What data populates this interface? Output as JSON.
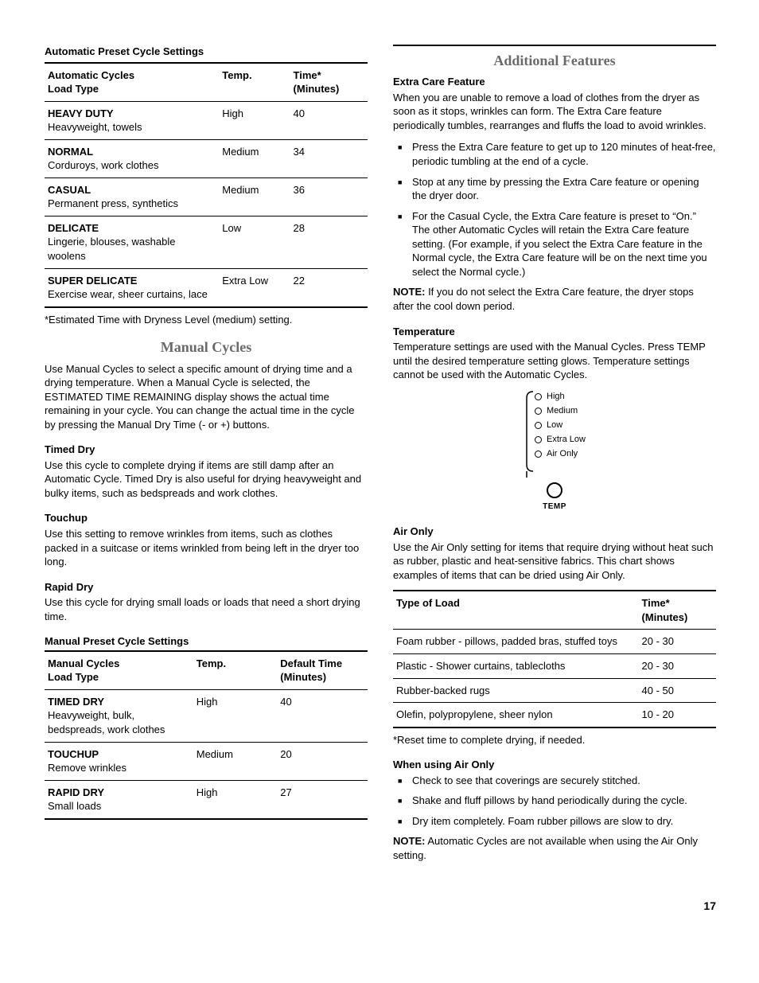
{
  "pageNumber": "17",
  "left": {
    "autoPreset": {
      "title": "Automatic Preset Cycle Settings",
      "headers": {
        "col1a": "Automatic Cycles",
        "col1b": "Load Type",
        "col2": "Temp.",
        "col3": "Time*",
        "col3b": "(Minutes)"
      },
      "rows": [
        {
          "name": "HEAVY DUTY",
          "desc": "Heavyweight, towels",
          "temp": "High",
          "time": "40"
        },
        {
          "name": "NORMAL",
          "desc": "Corduroys, work clothes",
          "temp": "Medium",
          "time": "34"
        },
        {
          "name": "CASUAL",
          "desc": "Permanent press, synthetics",
          "temp": "Medium",
          "time": "36"
        },
        {
          "name": "DELICATE",
          "desc": "Lingerie, blouses, washable woolens",
          "temp": "Low",
          "time": "28"
        },
        {
          "name": "SUPER DELICATE",
          "desc": "Exercise wear, sheer curtains, lace",
          "temp": "Extra Low",
          "time": "22"
        }
      ],
      "footnote": "*Estimated Time with Dryness Level (medium) setting."
    },
    "manual": {
      "heading": "Manual Cycles",
      "intro": "Use Manual Cycles to select a specific amount of drying time and a drying temperature. When a Manual Cycle is selected, the ESTIMATED TIME REMAINING display shows the actual time remaining in your cycle. You can change the actual time in the cycle by pressing the Manual Dry Time (- or +) buttons.",
      "timedDry": {
        "title": "Timed Dry",
        "body": "Use this cycle to complete drying if items are still damp after an Automatic Cycle. Timed Dry is also useful for drying heavyweight and bulky items, such as bedspreads and work clothes."
      },
      "touchup": {
        "title": "Touchup",
        "body": "Use this setting to remove wrinkles from items, such as clothes packed in a suitcase or items wrinkled from being left in the dryer too long."
      },
      "rapidDry": {
        "title": "Rapid Dry",
        "body": "Use this cycle for drying small loads or loads that need a short drying time."
      }
    },
    "manualPreset": {
      "title": "Manual Preset Cycle Settings",
      "headers": {
        "col1a": "Manual Cycles",
        "col1b": "Load Type",
        "col2": "Temp.",
        "col3": "Default Time",
        "col3b": "(Minutes)"
      },
      "rows": [
        {
          "name": "TIMED DRY",
          "desc": "Heavyweight, bulk, bedspreads, work clothes",
          "temp": "High",
          "time": "40"
        },
        {
          "name": "TOUCHUP",
          "desc": "Remove wrinkles",
          "temp": "Medium",
          "time": "20"
        },
        {
          "name": "RAPID DRY",
          "desc": "Small loads",
          "temp": "High",
          "time": "27"
        }
      ]
    }
  },
  "right": {
    "heading": "Additional Features",
    "extraCare": {
      "title": "Extra Care Feature",
      "intro": "When you are unable to remove a load of clothes from the dryer as soon as it stops, wrinkles can form. The Extra Care feature periodically tumbles, rearranges and fluffs the load to avoid wrinkles.",
      "bullets": [
        "Press the Extra Care feature to get up to 120 minutes of heat-free, periodic tumbling at the end of a cycle.",
        "Stop at any time by pressing the Extra Care feature or opening the dryer door.",
        "For the Casual Cycle, the Extra Care feature is preset to “On.” The other Automatic Cycles will retain the Extra Care feature setting. (For example, if you select the Extra Care feature in the Normal cycle, the Extra Care feature will be on the next time you select the Normal cycle.)"
      ],
      "noteLabel": "NOTE:",
      "noteBody": " If you do not select the Extra Care feature, the dryer stops after the cool down period."
    },
    "temperature": {
      "title": "Temperature",
      "body": "Temperature settings are used with the Manual Cycles. Press TEMP until the desired temperature setting glows. Temperature settings cannot be used with the Automatic Cycles.",
      "options": [
        "High",
        "Medium",
        "Low",
        "Extra Low",
        "Air Only"
      ],
      "knobLabel": "TEMP"
    },
    "airOnly": {
      "title": "Air Only",
      "intro": "Use the Air Only setting for items that require drying without heat such as rubber, plastic and heat-sensitive fabrics. This chart shows examples of items that can be dried using Air Only.",
      "headers": {
        "col1": "Type of Load",
        "col2": "Time*",
        "col2b": "(Minutes)"
      },
      "rows": [
        {
          "type": "Foam rubber - pillows, padded bras, stuffed toys",
          "time": "20 - 30"
        },
        {
          "type": "Plastic - Shower curtains, tablecloths",
          "time": "20 - 30"
        },
        {
          "type": "Rubber-backed rugs",
          "time": "40 - 50"
        },
        {
          "type": "Olefin, polypropylene, sheer nylon",
          "time": "10 - 20"
        }
      ],
      "footnote": "*Reset time to complete drying, if needed."
    },
    "whenAirOnly": {
      "title": "When using Air Only",
      "bullets": [
        "Check to see that coverings are securely stitched.",
        "Shake and fluff pillows by hand periodically during the cycle.",
        "Dry item completely. Foam rubber pillows are slow to dry."
      ],
      "noteLabel": "NOTE:",
      "noteBody": " Automatic Cycles are not available when using the Air Only setting."
    }
  }
}
